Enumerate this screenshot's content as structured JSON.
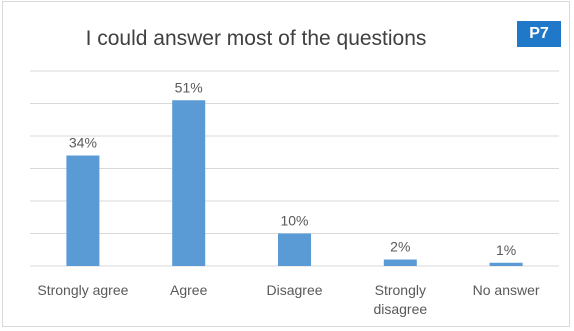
{
  "badge": "P7",
  "colors": {
    "bar": "#5b9bd5",
    "grid": "#d9d9d9",
    "text": "#595959",
    "badge_bg": "#1f78c8"
  },
  "chart_data": {
    "type": "bar",
    "title": "I could answer most of the questions",
    "categories": [
      "Strongly agree",
      "Agree",
      "Disagree",
      "Strongly disagree",
      "No answer"
    ],
    "category_lines": [
      [
        "Strongly agree"
      ],
      [
        "Agree"
      ],
      [
        "Disagree"
      ],
      [
        "Strongly",
        "disagree"
      ],
      [
        "No answer"
      ]
    ],
    "values": [
      34,
      51,
      10,
      2,
      1
    ],
    "data_labels": [
      "34%",
      "51%",
      "10%",
      "2%",
      "1%"
    ],
    "ylim": [
      0,
      60
    ],
    "grid": true,
    "xlabel": "",
    "ylabel": "",
    "legend": "none"
  }
}
